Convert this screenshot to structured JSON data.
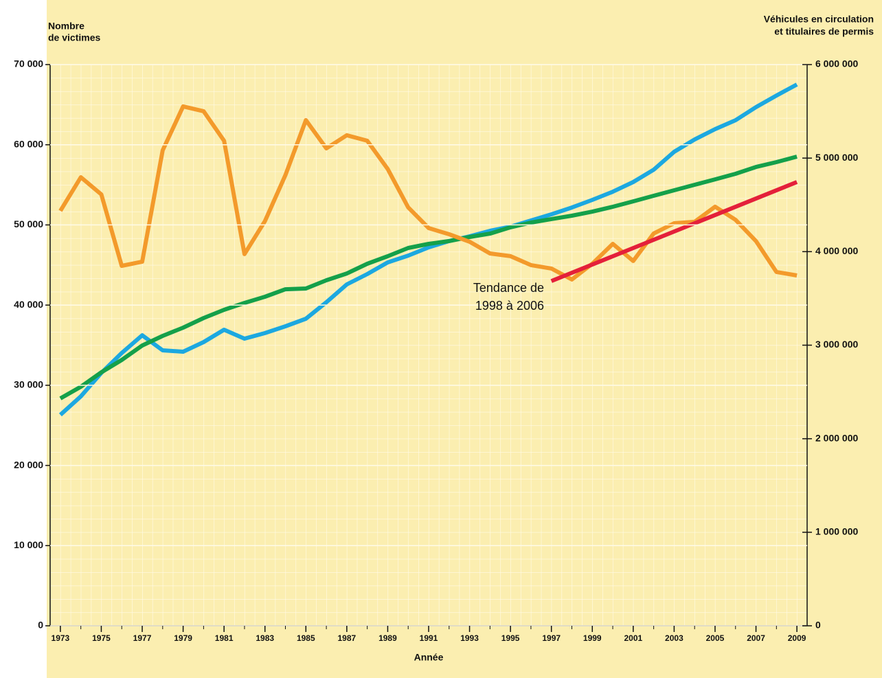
{
  "chart_data": {
    "type": "line",
    "ylabel": [
      "Nombre",
      "de victimes"
    ],
    "y2label": [
      "Véhicules en circulation",
      "et titulaires de permis"
    ],
    "xlabel": "Année",
    "annotation": [
      "Tendance de",
      "1998 à 2006"
    ],
    "x": [
      1973,
      1974,
      1975,
      1976,
      1977,
      1978,
      1979,
      1980,
      1981,
      1982,
      1983,
      1984,
      1985,
      1986,
      1987,
      1988,
      1989,
      1990,
      1991,
      1992,
      1993,
      1994,
      1995,
      1996,
      1997,
      1998,
      1999,
      2000,
      2001,
      2002,
      2003,
      2004,
      2005,
      2006,
      2007,
      2008,
      2009
    ],
    "xlim": [
      1972.5,
      2009.5
    ],
    "xticks": [
      1973,
      1975,
      1977,
      1979,
      1981,
      1983,
      1985,
      1987,
      1989,
      1991,
      1993,
      1995,
      1997,
      1999,
      2001,
      2003,
      2005,
      2007,
      2009
    ],
    "ylim": [
      0,
      70000
    ],
    "yticks": [
      0,
      {
        "value": 10000,
        "label": "10 000"
      },
      {
        "value": 20000,
        "label": "20 000"
      },
      {
        "value": 30000,
        "label": "30 000"
      },
      {
        "value": 40000,
        "label": "40 000"
      },
      {
        "value": 50000,
        "label": "50 000"
      },
      {
        "value": 60000,
        "label": "60 000"
      },
      {
        "value": 70000,
        "label": "70 000"
      }
    ],
    "y2lim": [
      0,
      6000000
    ],
    "y2ticks": [
      0,
      {
        "value": 1000000,
        "label": "1 000 000"
      },
      {
        "value": 2000000,
        "label": "2 000 000"
      },
      {
        "value": 3000000,
        "label": "3 000 000"
      },
      {
        "value": 4000000,
        "label": "4 000 000"
      },
      {
        "value": 5000000,
        "label": "5 000 000"
      },
      {
        "value": 6000000,
        "label": "6 000 000"
      }
    ],
    "grid": true,
    "series": [
      {
        "color": "#1ca8e0",
        "axis": "y2",
        "values": [
          2255000,
          2453000,
          2703000,
          2916000,
          3106000,
          2945000,
          2930000,
          3033000,
          3165000,
          3070000,
          3129000,
          3202000,
          3283000,
          3459000,
          3650000,
          3760000,
          3885000,
          3958000,
          4046000,
          4113000,
          4164000,
          4223000,
          4267000,
          4333000,
          4399000,
          4472000,
          4553000,
          4641000,
          4744000,
          4876000,
          5067000,
          5199000,
          5310000,
          5405000,
          5545000,
          5669000,
          5787000
        ]
      },
      {
        "color": "#14a04a",
        "axis": "y2",
        "values": [
          2431000,
          2556000,
          2710000,
          2842000,
          2996000,
          3099000,
          3187000,
          3290000,
          3378000,
          3452000,
          3518000,
          3598000,
          3606000,
          3694000,
          3767000,
          3870000,
          3951000,
          4039000,
          4083000,
          4113000,
          4157000,
          4193000,
          4260000,
          4311000,
          4348000,
          4384000,
          4428000,
          4480000,
          4538000,
          4597000,
          4656000,
          4715000,
          4773000,
          4832000,
          4905000,
          4957000,
          5016000
        ]
      },
      {
        "color": "#f39a2b",
        "values": [
          51760,
          55950,
          53810,
          44900,
          45420,
          59300,
          64780,
          64180,
          60500,
          46360,
          50470,
          56210,
          63070,
          59550,
          61180,
          60500,
          56980,
          52190,
          49610,
          48840,
          47900,
          46440,
          46100,
          44990,
          44560,
          43190,
          45160,
          47640,
          45500,
          48930,
          50210,
          50390,
          52270,
          50640,
          47990,
          44130,
          43700
        ]
      },
      {
        "color": "#e4203a",
        "x": [
          1997,
          2009
        ],
        "values": [
          43000,
          55350
        ]
      }
    ]
  }
}
